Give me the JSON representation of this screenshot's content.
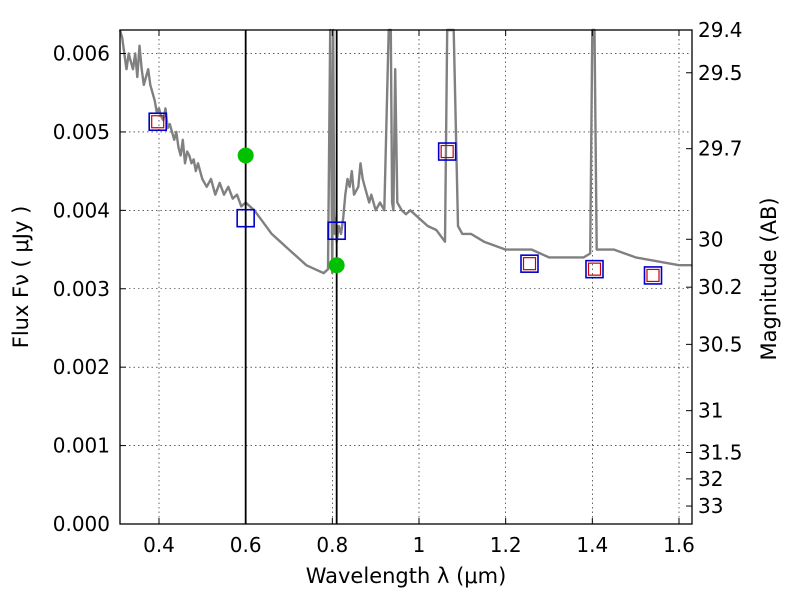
{
  "chart_data": {
    "type": "scatter",
    "xlabel": "Wavelength  λ (μm)",
    "ylabel": "Flux  Fν  ( μJy )",
    "y2label": "Magnitude (AB)",
    "xlim": [
      0.31,
      1.63
    ],
    "ylim": [
      0.0,
      0.0063
    ],
    "grid": true,
    "x_ticks": [
      0.4,
      0.6,
      0.8,
      1.0,
      1.2,
      1.4,
      1.6
    ],
    "x_tick_labels": [
      "0.4",
      "0.6",
      "0.8",
      "1",
      "1.2",
      "1.4",
      "1.6"
    ],
    "y_ticks": [
      0.0,
      0.001,
      0.002,
      0.003,
      0.004,
      0.005,
      0.006
    ],
    "y_tick_labels": [
      "0.000",
      "0.001",
      "0.002",
      "0.003",
      "0.004",
      "0.005",
      "0.006"
    ],
    "mag_ticks": [
      29.4,
      29.5,
      29.7,
      30,
      30.2,
      30.5,
      31,
      31.5,
      32,
      33
    ],
    "mag_tick_labels": [
      "29.4",
      "29.5",
      "29.7",
      "30",
      "30.2",
      "30.5",
      "31",
      "31.5",
      "32",
      "33"
    ],
    "vertical_lines": [
      0.6,
      0.81
    ],
    "colors": {
      "model": "#808080",
      "obs_marker": "#00c000",
      "blue_square": "#0000cc",
      "red_square": "#cc0000",
      "vline": "#000000"
    },
    "series": [
      {
        "kind": "model-spectrum",
        "x": [
          0.31,
          0.315,
          0.32,
          0.325,
          0.33,
          0.335,
          0.34,
          0.345,
          0.35,
          0.355,
          0.36,
          0.365,
          0.37,
          0.375,
          0.38,
          0.385,
          0.39,
          0.395,
          0.4,
          0.405,
          0.41,
          0.415,
          0.42,
          0.425,
          0.43,
          0.435,
          0.44,
          0.445,
          0.45,
          0.455,
          0.46,
          0.465,
          0.47,
          0.475,
          0.48,
          0.485,
          0.49,
          0.5,
          0.51,
          0.52,
          0.53,
          0.54,
          0.55,
          0.56,
          0.57,
          0.58,
          0.59,
          0.6,
          0.62,
          0.64,
          0.66,
          0.68,
          0.7,
          0.72,
          0.74,
          0.76,
          0.78,
          0.79,
          0.795,
          0.8,
          0.802,
          0.804,
          0.806,
          0.808,
          0.81,
          0.815,
          0.82,
          0.825,
          0.83,
          0.835,
          0.84,
          0.845,
          0.85,
          0.86,
          0.865,
          0.87,
          0.875,
          0.88,
          0.885,
          0.89,
          0.9,
          0.91,
          0.92,
          0.93,
          0.935,
          0.938,
          0.941,
          0.945,
          0.95,
          0.96,
          0.97,
          0.98,
          1.0,
          1.02,
          1.04,
          1.06,
          1.065,
          1.08,
          1.09,
          1.1,
          1.12,
          1.15,
          1.2,
          1.25,
          1.26,
          1.3,
          1.35,
          1.38,
          1.395,
          1.4,
          1.405,
          1.41,
          1.42,
          1.45,
          1.5,
          1.55,
          1.6,
          1.63
        ],
        "y": [
          0.0063,
          0.0062,
          0.006,
          0.0058,
          0.006,
          0.0059,
          0.0058,
          0.006,
          0.0057,
          0.0061,
          0.0058,
          0.0056,
          0.0057,
          0.0058,
          0.0056,
          0.0055,
          0.0054,
          0.00525,
          0.0053,
          0.0052,
          0.00515,
          0.0053,
          0.00505,
          0.0051,
          0.005,
          0.0049,
          0.005,
          0.0048,
          0.0047,
          0.0049,
          0.0046,
          0.00475,
          0.0047,
          0.0046,
          0.00465,
          0.0045,
          0.0046,
          0.0044,
          0.0043,
          0.0044,
          0.0042,
          0.00435,
          0.0042,
          0.0043,
          0.00415,
          0.0042,
          0.00405,
          0.0041,
          0.004,
          0.00385,
          0.0037,
          0.0036,
          0.0035,
          0.0034,
          0.0033,
          0.00325,
          0.0032,
          0.00325,
          0.0063,
          0.0032,
          0.0063,
          0.004,
          0.0037,
          0.0039,
          0.0036,
          0.0038,
          0.0037,
          0.0039,
          0.0042,
          0.0044,
          0.0043,
          0.0045,
          0.0042,
          0.0043,
          0.0046,
          0.0044,
          0.0043,
          0.0042,
          0.0041,
          0.0042,
          0.004,
          0.0041,
          0.004,
          0.0063,
          0.0063,
          0.0041,
          0.004,
          0.0058,
          0.0041,
          0.004,
          0.00395,
          0.004,
          0.0039,
          0.0038,
          0.00375,
          0.0036,
          0.0063,
          0.0063,
          0.0038,
          0.0037,
          0.0037,
          0.0036,
          0.0035,
          0.0035,
          0.0035,
          0.0034,
          0.0034,
          0.0034,
          0.00345,
          0.0063,
          0.0063,
          0.0035,
          0.0035,
          0.0035,
          0.0034,
          0.00335,
          0.0033,
          0.0033
        ]
      },
      {
        "kind": "observed",
        "x": [
          0.6,
          0.81
        ],
        "y": [
          0.0047,
          0.0033
        ]
      },
      {
        "kind": "model-blue-squares",
        "x": [
          0.397,
          0.6,
          0.81,
          1.065,
          1.255,
          1.405,
          1.54
        ],
        "y": [
          0.00513,
          0.0039,
          0.00374,
          0.00475,
          0.00332,
          0.00325,
          0.00317
        ]
      },
      {
        "kind": "model-red-squares",
        "x": [
          0.397,
          1.065,
          1.255,
          1.405,
          1.54
        ],
        "y": [
          0.00513,
          0.00475,
          0.00332,
          0.00325,
          0.00317
        ]
      }
    ]
  }
}
